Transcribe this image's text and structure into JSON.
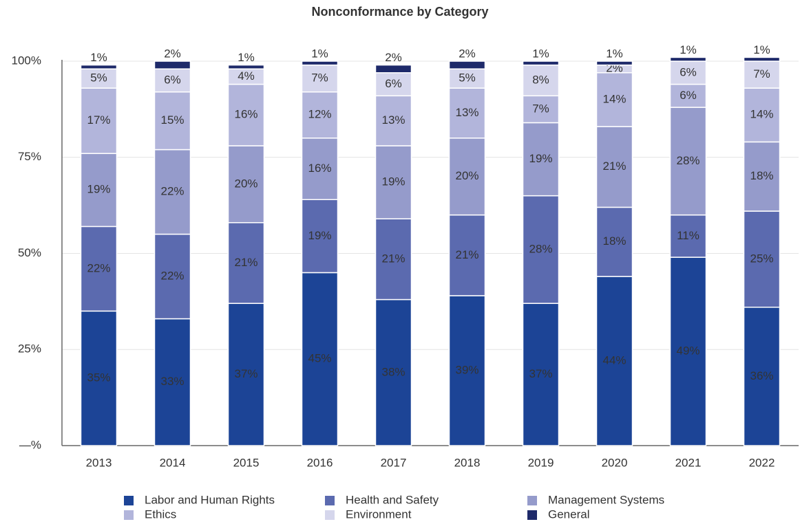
{
  "chart_data": {
    "type": "stacked_bar",
    "title": "Nonconformance by Category",
    "categories": [
      "2013",
      "2014",
      "2015",
      "2016",
      "2017",
      "2018",
      "2019",
      "2020",
      "2021",
      "2022"
    ],
    "series": [
      {
        "name": "Labor and Human Rights",
        "color": "#1c4496",
        "values": [
          35,
          33,
          37,
          45,
          38,
          39,
          37,
          44,
          49,
          36
        ],
        "value_labels": [
          "35%",
          "33%",
          "37%",
          "45%",
          "38%",
          "39%",
          "37%",
          "44%",
          "49%",
          "36%"
        ]
      },
      {
        "name": "Health and Safety",
        "color": "#5b6aaf",
        "values": [
          22,
          22,
          21,
          19,
          21,
          21,
          28,
          18,
          11,
          25
        ],
        "value_labels": [
          "22%",
          "22%",
          "21%",
          "19%",
          "21%",
          "21%",
          "28%",
          "18%",
          "11%",
          "25%"
        ]
      },
      {
        "name": "Management Systems",
        "color": "#959bcb",
        "values": [
          19,
          22,
          20,
          16,
          19,
          20,
          19,
          21,
          28,
          18
        ],
        "value_labels": [
          "19%",
          "22%",
          "20%",
          "16%",
          "19%",
          "20%",
          "19%",
          "21%",
          "28%",
          "18%"
        ]
      },
      {
        "name": "Ethics",
        "color": "#b2b5db",
        "values": [
          17,
          15,
          16,
          12,
          13,
          13,
          7,
          14,
          6,
          14
        ],
        "value_labels": [
          "17%",
          "15%",
          "16%",
          "12%",
          "13%",
          "13%",
          "7%",
          "14%",
          "6%",
          "14%"
        ]
      },
      {
        "name": "Environment",
        "color": "#d5d6ec",
        "values": [
          5,
          6,
          4,
          7,
          6,
          5,
          8,
          2,
          6,
          7
        ],
        "value_labels": [
          "5%",
          "6%",
          "4%",
          "7%",
          "6%",
          "5%",
          "8%",
          "2%",
          "6%",
          "7%"
        ]
      },
      {
        "name": "General",
        "color": "#1e2a6a",
        "values": [
          1,
          2,
          1,
          1,
          2,
          2,
          1,
          1,
          1,
          1
        ],
        "value_labels": [
          "1%",
          "2%",
          "1%",
          "1%",
          "2%",
          "2%",
          "1%",
          "1%",
          "1%",
          "1%"
        ]
      }
    ],
    "ylim": [
      0,
      100
    ],
    "yticks": [
      {
        "value": 0,
        "label": "—%"
      },
      {
        "value": 25,
        "label": "25%"
      },
      {
        "value": 50,
        "label": "50%"
      },
      {
        "value": 75,
        "label": "75%"
      },
      {
        "value": 100,
        "label": "100%"
      }
    ],
    "grid": true,
    "legend": "bottom"
  }
}
